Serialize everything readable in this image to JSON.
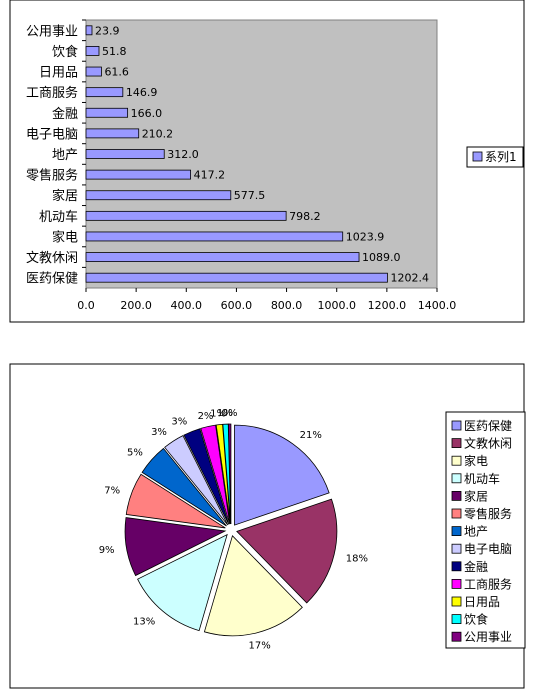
{
  "chart_data": [
    {
      "type": "bar",
      "orientation": "horizontal",
      "title": "",
      "xlabel": "",
      "ylabel": "",
      "categories": [
        "公用事业",
        "饮食",
        "日用品",
        "工商服务",
        "金融",
        "电子电脑",
        "地产",
        "零售服务",
        "家居",
        "机动车",
        "家电",
        "文教休闲",
        "医药保健"
      ],
      "series": [
        {
          "name": "系列1",
          "values": [
            23.9,
            51.8,
            61.6,
            146.9,
            166.0,
            210.2,
            312.0,
            417.2,
            577.5,
            798.2,
            1023.9,
            1089.0,
            1202.4
          ],
          "labels": [
            "23.9",
            "51.8",
            "61.6",
            "146.9",
            "166.0",
            "210.2",
            "312.0",
            "417.2",
            "577.5",
            "798.2",
            "1023.9",
            "1089.0",
            "1202.4"
          ]
        }
      ],
      "xlim": [
        0,
        1400
      ],
      "xticks": [
        "0.0",
        "200.0",
        "400.0",
        "600.0",
        "800.0",
        "1000.0",
        "1200.0",
        "1400.0"
      ],
      "grid": false,
      "legend": "right",
      "colors": {
        "bar": "#9999ff",
        "plot_bg": "#c0c0c0",
        "border": "#000000"
      }
    },
    {
      "type": "pie",
      "title": "",
      "categories": [
        "医药保健",
        "文教休闲",
        "家电",
        "机动车",
        "家居",
        "零售服务",
        "地产",
        "电子电脑",
        "金融",
        "工商服务",
        "日用品",
        "饮食",
        "公用事业"
      ],
      "values": [
        1202.4,
        1089.0,
        1023.9,
        798.2,
        577.5,
        417.2,
        312.0,
        210.2,
        166.0,
        146.9,
        61.6,
        51.8,
        23.9
      ],
      "labels": [
        "21%",
        "18%",
        "17%",
        "13%",
        "9%",
        "7%",
        "5%",
        "3%",
        "3%",
        "2%",
        "1%",
        "1%",
        "0%"
      ],
      "colors": [
        "#9999ff",
        "#993366",
        "#ffffcc",
        "#ccffff",
        "#660066",
        "#ff8080",
        "#0066cc",
        "#ccccff",
        "#000080",
        "#ff00ff",
        "#ffff00",
        "#00ffff",
        "#800080"
      ],
      "legend": "right",
      "exploded": true
    }
  ]
}
